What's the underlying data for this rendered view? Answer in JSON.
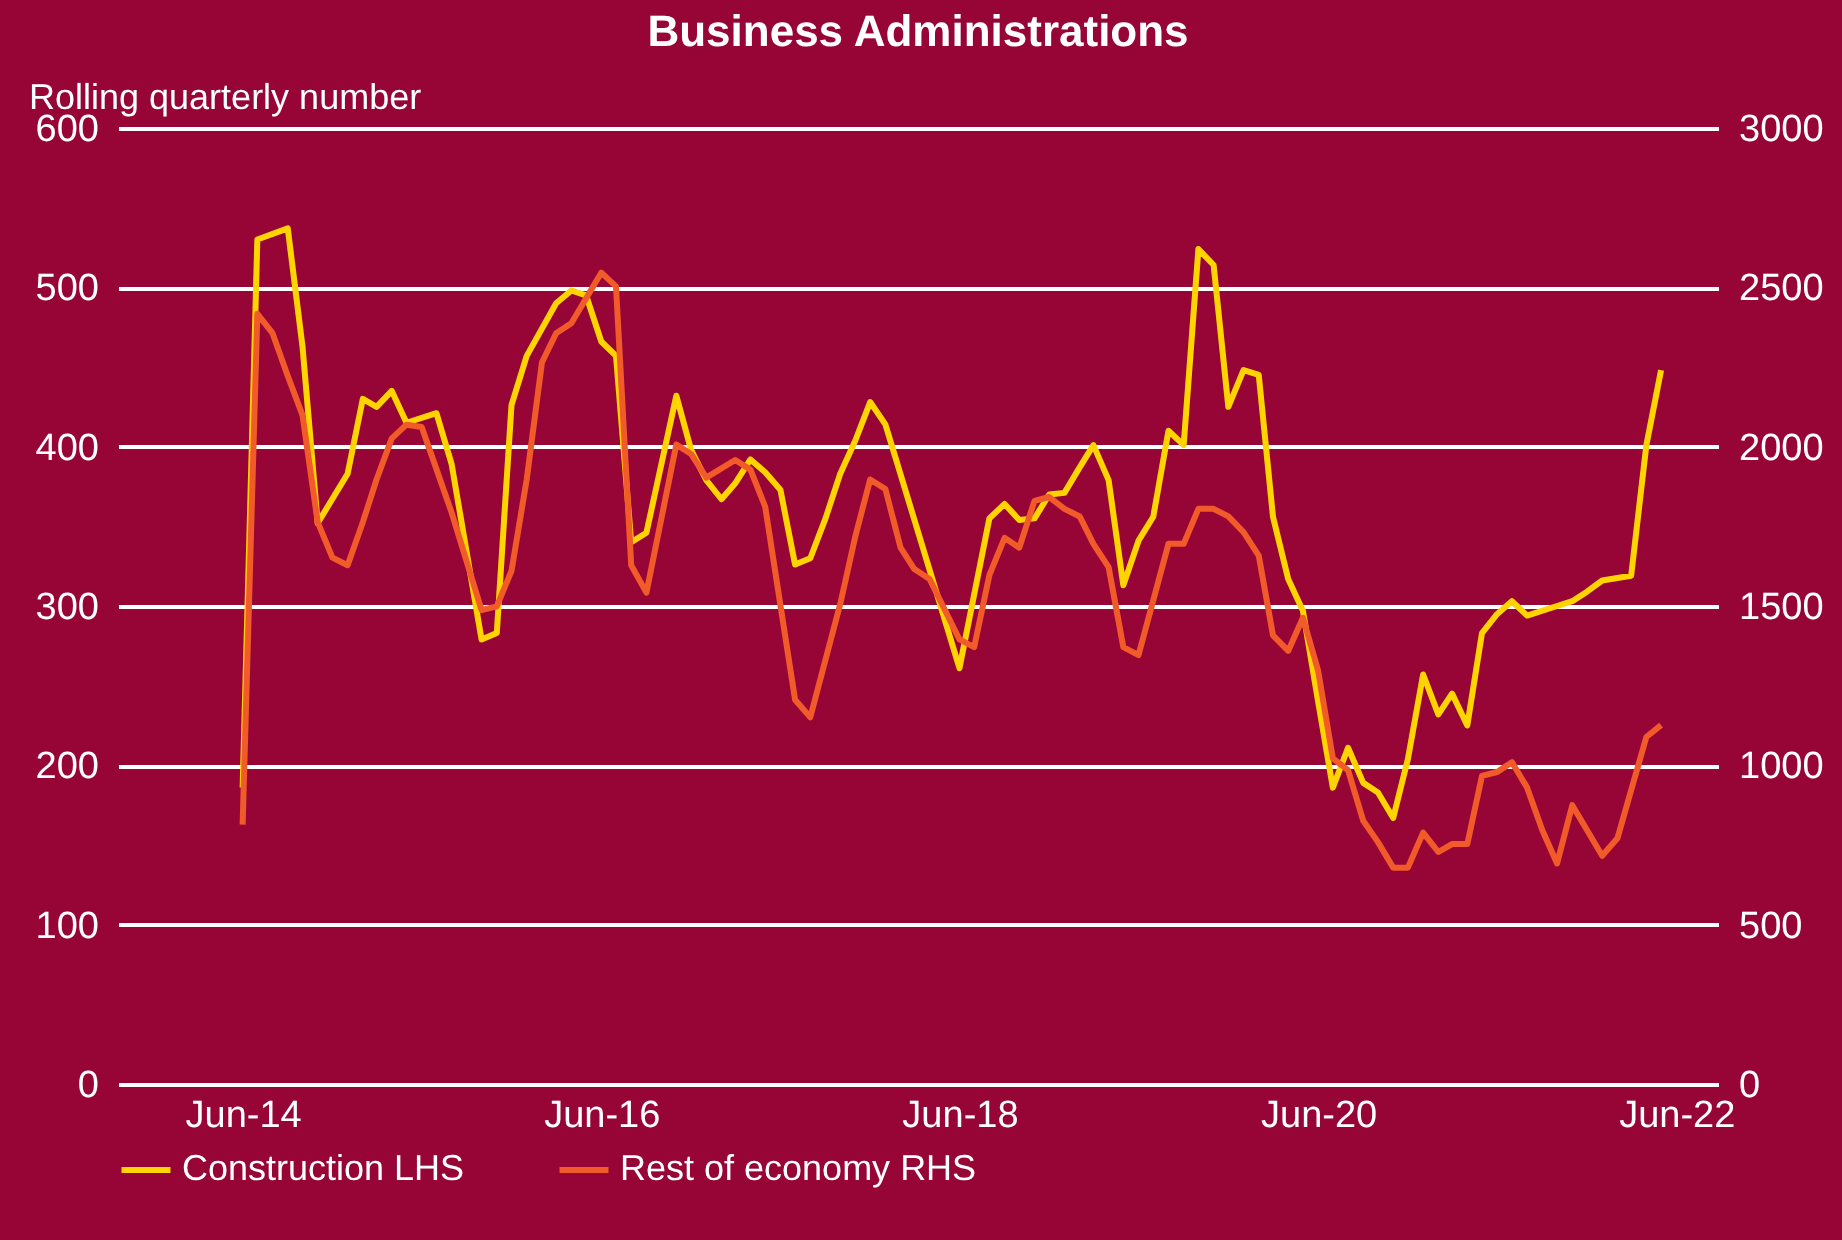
{
  "chart_data": {
    "type": "line",
    "title": "Business Administrations",
    "ylabel": "Rolling quarterly number",
    "xlim": [
      "2013-09-20",
      "2022-08-25"
    ],
    "xticks": [
      {
        "value": "2014-06",
        "label": "Jun-14"
      },
      {
        "value": "2016-06",
        "label": "Jun-16"
      },
      {
        "value": "2018-06",
        "label": "Jun-18"
      },
      {
        "value": "2020-06",
        "label": "Jun-20"
      },
      {
        "value": "2022-06",
        "label": "Jun-22"
      }
    ],
    "ylim": [
      0,
      600
    ],
    "yticks": [
      0,
      100,
      200,
      300,
      400,
      500,
      600
    ],
    "y2lim": [
      0,
      3000
    ],
    "y2ticks": [
      0,
      500,
      1000,
      1500,
      2000,
      2500,
      3000
    ],
    "grid": "y",
    "legend": "bottom",
    "line_style": "solid",
    "marker": "none",
    "series": [
      {
        "name": "Construction LHS",
        "color": "#ffd400",
        "axis": "y",
        "x": [
          "2014-06",
          "2014-07",
          "2014-09",
          "2014-10",
          "2014-11",
          "2015-01",
          "2015-02",
          "2015-03",
          "2015-04",
          "2015-05",
          "2015-07",
          "2015-08",
          "2015-10",
          "2015-11",
          "2015-12",
          "2016-01",
          "2016-03",
          "2016-04",
          "2016-05",
          "2016-06",
          "2016-07",
          "2016-08",
          "2016-09",
          "2016-11",
          "2016-12",
          "2017-01",
          "2017-02",
          "2017-03",
          "2017-04",
          "2017-05",
          "2017-06",
          "2017-07",
          "2017-08",
          "2017-09",
          "2017-10",
          "2017-11",
          "2017-12",
          "2018-01",
          "2018-06",
          "2018-08",
          "2018-09",
          "2018-10",
          "2018-11",
          "2018-12",
          "2019-01",
          "2019-02",
          "2019-03",
          "2019-04",
          "2019-05",
          "2019-06",
          "2019-07",
          "2019-08",
          "2019-09",
          "2019-10",
          "2019-11",
          "2019-12",
          "2020-01",
          "2020-02",
          "2020-03",
          "2020-04",
          "2020-05",
          "2020-06",
          "2020-07",
          "2020-08",
          "2020-09",
          "2020-10",
          "2020-11",
          "2020-12",
          "2021-01",
          "2021-02",
          "2021-03",
          "2021-04",
          "2021-05",
          "2021-06",
          "2021-07",
          "2021-08",
          "2021-10",
          "2021-11",
          "2021-12",
          "2022-01",
          "2022-03",
          "2022-04",
          "2022-05"
        ],
        "values": [
          186,
          530,
          537,
          463,
          352,
          383,
          430,
          425,
          435,
          415,
          421,
          389,
          279,
          283,
          426,
          457,
          490,
          498,
          495,
          466,
          457,
          340,
          346,
          432,
          398,
          379,
          367,
          377,
          392,
          384,
          373,
          326,
          330,
          355,
          383,
          404,
          428,
          414,
          261,
          355,
          364,
          354,
          355,
          370,
          371,
          387,
          401,
          379,
          313,
          341,
          356,
          410,
          401,
          524,
          514,
          425,
          448,
          445,
          356,
          317,
          297,
          240,
          186,
          211,
          189,
          183,
          167,
          204,
          257,
          232,
          245,
          225,
          283,
          295,
          303,
          294,
          300,
          303,
          309,
          316,
          319,
          401,
          448
        ]
      },
      {
        "name": "Rest of economy RHS",
        "color": "#f15a29",
        "axis": "y2",
        "x": [
          "2014-06",
          "2014-07",
          "2014-08",
          "2014-09",
          "2014-10",
          "2014-11",
          "2014-12",
          "2015-01",
          "2015-02",
          "2015-03",
          "2015-04",
          "2015-05",
          "2015-06",
          "2015-08",
          "2015-10",
          "2015-11",
          "2015-12",
          "2016-01",
          "2016-02",
          "2016-03",
          "2016-04",
          "2016-06",
          "2016-07",
          "2016-08",
          "2016-09",
          "2016-11",
          "2016-12",
          "2017-01",
          "2017-03",
          "2017-04",
          "2017-05",
          "2017-07",
          "2017-08",
          "2017-10",
          "2017-11",
          "2017-12",
          "2018-01",
          "2018-02",
          "2018-03",
          "2018-04",
          "2018-06",
          "2018-07",
          "2018-08",
          "2018-09",
          "2018-10",
          "2018-11",
          "2018-12",
          "2019-01",
          "2019-02",
          "2019-03",
          "2019-04",
          "2019-05",
          "2019-06",
          "2019-08",
          "2019-09",
          "2019-10",
          "2019-11",
          "2019-12",
          "2020-01",
          "2020-02",
          "2020-03",
          "2020-04",
          "2020-05",
          "2020-06",
          "2020-07",
          "2020-08",
          "2020-09",
          "2020-10",
          "2020-11",
          "2020-12",
          "2021-01",
          "2021-02",
          "2021-03",
          "2021-04",
          "2021-05",
          "2021-06",
          "2021-07",
          "2021-08",
          "2021-09",
          "2021-10",
          "2021-11",
          "2022-01",
          "2022-02",
          "2022-04",
          "2022-05"
        ],
        "values": [
          814,
          2417,
          2356,
          2222,
          2099,
          1763,
          1652,
          1628,
          1763,
          1897,
          2026,
          2069,
          2062,
          1793,
          1487,
          1499,
          1610,
          1897,
          2264,
          2356,
          2387,
          2546,
          2503,
          1628,
          1542,
          2007,
          1977,
          1903,
          1958,
          1928,
          1812,
          1206,
          1151,
          1506,
          1720,
          1897,
          1867,
          1683,
          1616,
          1585,
          1395,
          1371,
          1597,
          1714,
          1683,
          1830,
          1842,
          1805,
          1781,
          1695,
          1622,
          1371,
          1346,
          1695,
          1695,
          1805,
          1805,
          1781,
          1732,
          1658,
          1408,
          1359,
          1463,
          1297,
          1022,
          985,
          826,
          759,
          679,
          679,
          789,
          728,
          753,
          753,
          967,
          979,
          1010,
          930,
          796,
          692,
          875,
          716,
          771,
          1089,
          1126
        ]
      }
    ]
  }
}
